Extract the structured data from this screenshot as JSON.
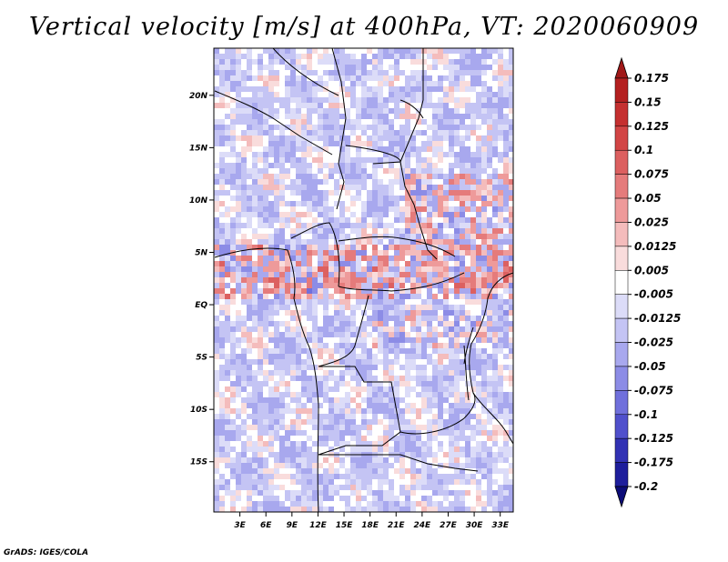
{
  "chart_data": {
    "type": "heatmap",
    "title": "Vertical velocity [m/s] at 400hPa, VT: 2020060909",
    "variable": "Vertical velocity",
    "units": "m/s",
    "level": "400hPa",
    "valid_time": "2020060909",
    "x_ticks": [
      "3E",
      "6E",
      "9E",
      "12E",
      "15E",
      "18E",
      "21E",
      "24E",
      "27E",
      "30E",
      "33E"
    ],
    "x_tick_values": [
      3,
      6,
      9,
      12,
      15,
      18,
      21,
      24,
      27,
      30,
      33
    ],
    "y_ticks": [
      "20N",
      "15N",
      "10N",
      "5N",
      "EQ",
      "5S",
      "10S",
      "15S"
    ],
    "y_tick_values": [
      20,
      15,
      10,
      5,
      0,
      -5,
      -10,
      -15
    ],
    "lon_range": [
      0,
      34.5
    ],
    "lat_range": [
      -19.8,
      24.5
    ],
    "colorbar_levels": [
      "0.175",
      "0.15",
      "0.125",
      "0.1",
      "0.075",
      "0.05",
      "0.025",
      "0.0125",
      "0.005",
      "-0.005",
      "-0.0125",
      "-0.025",
      "-0.05",
      "-0.075",
      "-0.1",
      "-0.125",
      "-0.175",
      "-0.2"
    ],
    "colorbar_colors": [
      "#a01818",
      "#b42020",
      "#c53030",
      "#d24545",
      "#dc6060",
      "#e57b7b",
      "#ee9a9a",
      "#f4bcbc",
      "#f9dcdc",
      "#ffffff",
      "#dcdcf8",
      "#c4c4f4",
      "#a8a8ee",
      "#8c8ce6",
      "#7070dc",
      "#5050cc",
      "#3232b4",
      "#1e1e9c",
      "#0c0c78"
    ]
  },
  "footer": {
    "credit": "GrADS: IGES/COLA"
  }
}
